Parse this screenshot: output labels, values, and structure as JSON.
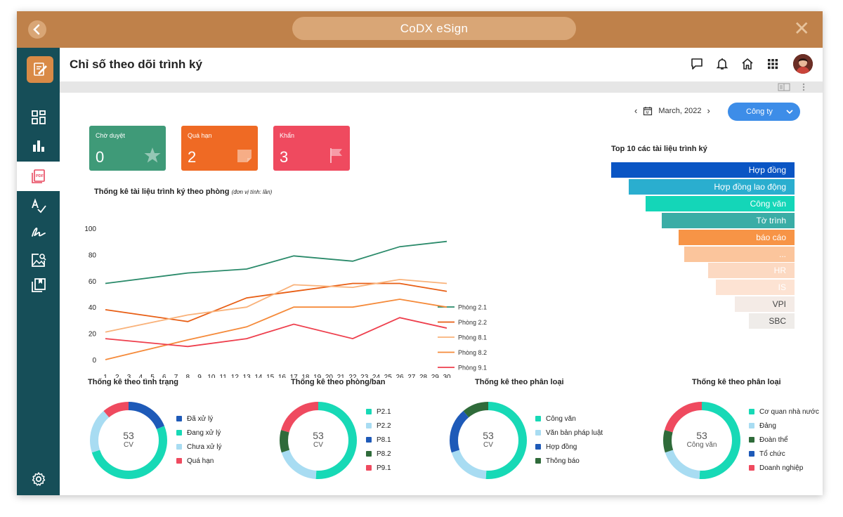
{
  "window": {
    "app_title": "CoDX eSign"
  },
  "header": {
    "page_title": "Chỉ số theo dõi trình ký"
  },
  "filters": {
    "date": "March, 2022",
    "company": "Công ty"
  },
  "cards": [
    {
      "label": "Chờ duyệt",
      "value": "0",
      "color": "#3f9a78",
      "icon": "star-icon"
    },
    {
      "label": "Quá hạn",
      "value": "2",
      "color": "#ef6a24",
      "icon": "note-icon"
    },
    {
      "label": "Khẩn",
      "value": "3",
      "color": "#ef4a5f",
      "icon": "flag-icon"
    }
  ],
  "line_chart_title": "Thống kê tài liệu trình ký theo phòng",
  "line_chart_unit": "(đơn vị tính: lần)",
  "funnel": {
    "title": "Top 10 các tài liệu trình ký",
    "items": [
      {
        "label": "Hợp đồng",
        "color": "#0a55c4",
        "text": "#ffffff"
      },
      {
        "label": "Hợp đồng lao động",
        "color": "#2aaecf",
        "text": "#ffffff"
      },
      {
        "label": "Công văn",
        "color": "#14d6b8",
        "text": "#ffffff"
      },
      {
        "label": "Tờ trình",
        "color": "#3aada6",
        "text": "#ffffff"
      },
      {
        "label": "báo cáo",
        "color": "#f79446",
        "text": "#ffffff"
      },
      {
        "label": "...",
        "color": "#fbc59c",
        "text": "#ffffff"
      },
      {
        "label": "HR",
        "color": "#fcd9c2",
        "text": "#ffffff"
      },
      {
        "label": "IS",
        "color": "#fde3d3",
        "text": "#ffffff"
      },
      {
        "label": "VPI",
        "color": "#f4ebe6",
        "text": "#444444"
      },
      {
        "label": "SBC",
        "color": "#efece9",
        "text": "#444444"
      }
    ]
  },
  "donuts": [
    {
      "title": "Thống kê theo tình trạng",
      "center_value": "53",
      "center_unit": "CV",
      "segments": [
        {
          "label": "Đã xử lý",
          "value": 10,
          "color": "#1e5ab8"
        },
        {
          "label": "Đang xử lý",
          "value": 27,
          "color": "#17d9b6"
        },
        {
          "label": "Chưa xử lý",
          "value": 10,
          "color": "#a8dcf2"
        },
        {
          "label": "Quá hạn",
          "value": 6,
          "color": "#ef4a5f"
        }
      ]
    },
    {
      "title": "Thống kê theo phòng/ban",
      "center_value": "53",
      "center_unit": "CV",
      "segments": [
        {
          "label": "P2.1",
          "value": 27,
          "color": "#17d9b6"
        },
        {
          "label": "P2.2",
          "value": 10,
          "color": "#a8dcf2"
        },
        {
          "label": "P8.1",
          "value": 0,
          "color": "#1e5ab8"
        },
        {
          "label": "P8.2",
          "value": 5,
          "color": "#2f6b3a"
        },
        {
          "label": "P9.1",
          "value": 11,
          "color": "#ef4a5f"
        }
      ]
    },
    {
      "title": "Thống kê theo phân loại",
      "center_value": "53",
      "center_unit": "CV",
      "segments": [
        {
          "label": "Công văn",
          "value": 27,
          "color": "#17d9b6"
        },
        {
          "label": "Văn bản pháp luật",
          "value": 10,
          "color": "#a8dcf2"
        },
        {
          "label": "Hợp đồng",
          "value": 10,
          "color": "#1e5ab8"
        },
        {
          "label": "Thông báo",
          "value": 6,
          "color": "#2f6b3a"
        }
      ]
    },
    {
      "title": "Thống kê theo phân loại",
      "center_value": "53",
      "center_unit": "Công văn",
      "segments": [
        {
          "label": "Cơ quan nhà nước",
          "value": 27,
          "color": "#17d9b6"
        },
        {
          "label": "Đảng",
          "value": 10,
          "color": "#a8dcf2"
        },
        {
          "label": "Đoàn thể",
          "value": 5,
          "color": "#2f6b3a"
        },
        {
          "label": "Tổ chức",
          "value": 0,
          "color": "#1e5ab8"
        },
        {
          "label": "Doanh nghiệp",
          "value": 11,
          "color": "#ef4a5f"
        }
      ]
    }
  ],
  "chart_data": {
    "type": "line",
    "title": "Thống kê tài liệu trình ký theo phòng",
    "subtitle": "(đơn vị tính: lần)",
    "x": [
      1,
      2,
      3,
      4,
      5,
      6,
      7,
      8,
      9,
      10,
      11,
      12,
      13,
      14,
      15,
      16,
      17,
      18,
      19,
      20,
      21,
      22,
      23,
      24,
      25,
      26,
      27,
      28,
      29,
      30
    ],
    "ylim": [
      0,
      100
    ],
    "yticks": [
      0,
      20,
      40,
      60,
      80,
      100
    ],
    "legend_position": "right",
    "series": [
      {
        "name": "Phòng 2.1",
        "color": "#2a8a6a",
        "points": [
          [
            1,
            58
          ],
          [
            8,
            66
          ],
          [
            13,
            69
          ],
          [
            17,
            79
          ],
          [
            22,
            75
          ],
          [
            26,
            86
          ],
          [
            30,
            90
          ]
        ]
      },
      {
        "name": "Phòng 2.2",
        "color": "#e85e14",
        "points": [
          [
            1,
            38
          ],
          [
            8,
            29
          ],
          [
            13,
            47
          ],
          [
            17,
            52
          ],
          [
            22,
            58
          ],
          [
            26,
            58
          ],
          [
            30,
            52
          ]
        ]
      },
      {
        "name": "Phòng 8.1",
        "color": "#f9b27a",
        "points": [
          [
            1,
            21
          ],
          [
            8,
            34
          ],
          [
            13,
            40
          ],
          [
            17,
            57
          ],
          [
            22,
            55
          ],
          [
            26,
            61
          ],
          [
            30,
            58
          ]
        ]
      },
      {
        "name": "Phòng 8.2",
        "color": "#f58a3a",
        "points": [
          [
            1,
            0
          ],
          [
            8,
            15
          ],
          [
            13,
            25
          ],
          [
            17,
            40
          ],
          [
            22,
            40
          ],
          [
            26,
            46
          ],
          [
            30,
            40
          ]
        ]
      },
      {
        "name": "Phòng 9.1",
        "color": "#ee3f4d",
        "points": [
          [
            1,
            16
          ],
          [
            8,
            10
          ],
          [
            13,
            16
          ],
          [
            17,
            27
          ],
          [
            22,
            16
          ],
          [
            26,
            32
          ],
          [
            30,
            24
          ]
        ]
      }
    ]
  }
}
